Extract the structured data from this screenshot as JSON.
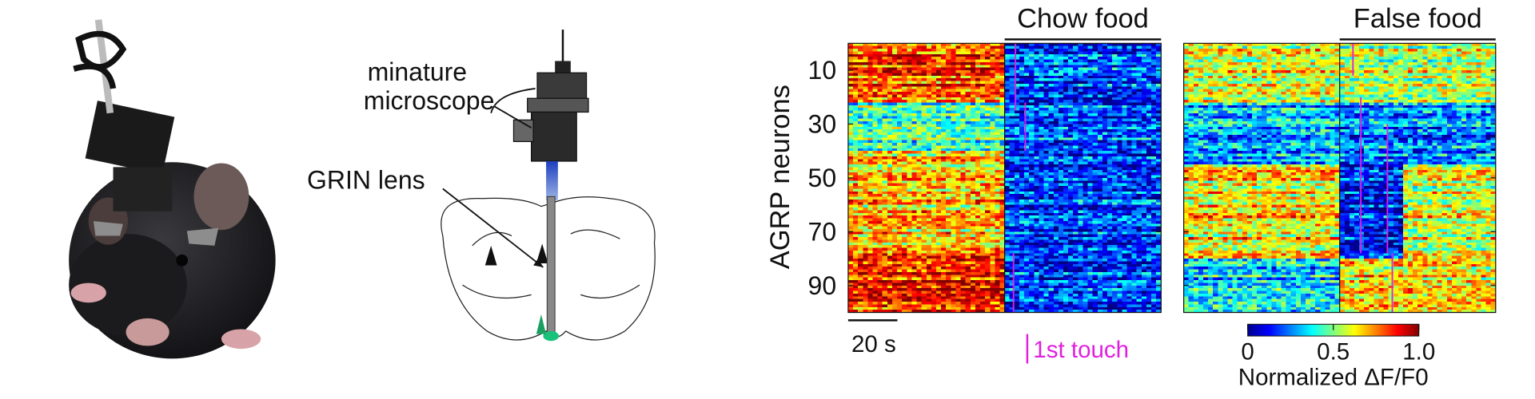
{
  "labels": {
    "microscope": [
      "minature",
      "microscope"
    ],
    "grin_lens": "GRIN lens"
  },
  "heatmaps": [
    {
      "title": "Chow food"
    },
    {
      "title": "False food"
    }
  ],
  "y_axis": {
    "label": "AGRP neurons",
    "lim": [
      0,
      100
    ],
    "ticks": [
      10,
      30,
      50,
      70,
      90
    ]
  },
  "scale_bar": "20 s",
  "touch_legend": "1st touch",
  "colorbar": {
    "lim": [
      0,
      1
    ],
    "ticks": [
      0,
      0.5,
      {
        "value": 1,
        "label": "1.0"
      }
    ],
    "label": "Normalized ΔF/F0"
  }
}
